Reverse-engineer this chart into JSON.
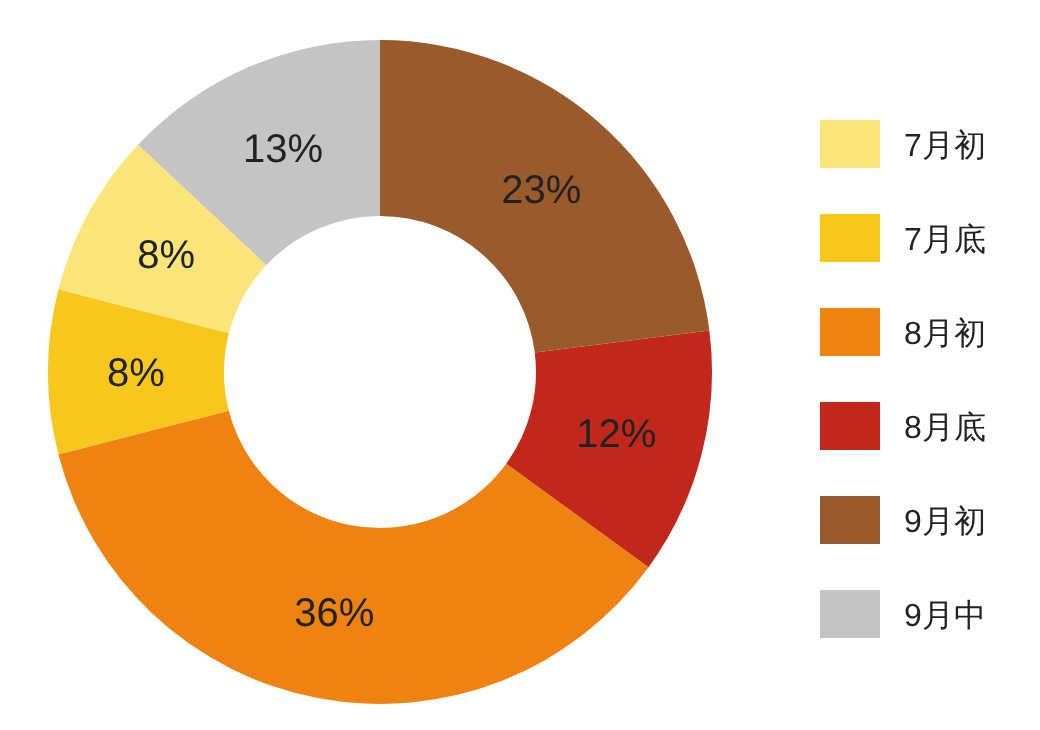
{
  "chart_data": {
    "type": "donut",
    "categories": [
      "7月初",
      "7月底",
      "8月初",
      "8月底",
      "9月初",
      "9月中"
    ],
    "values": [
      8,
      8,
      36,
      12,
      23,
      13
    ],
    "colors": [
      "#fbe47a",
      "#f8c71c",
      "#ee8312",
      "#c1281b",
      "#9a5b2c",
      "#c4c4c4"
    ],
    "value_labels": [
      "8%",
      "8%",
      "36%",
      "12%",
      "23%",
      "13%"
    ],
    "legend": "right"
  }
}
